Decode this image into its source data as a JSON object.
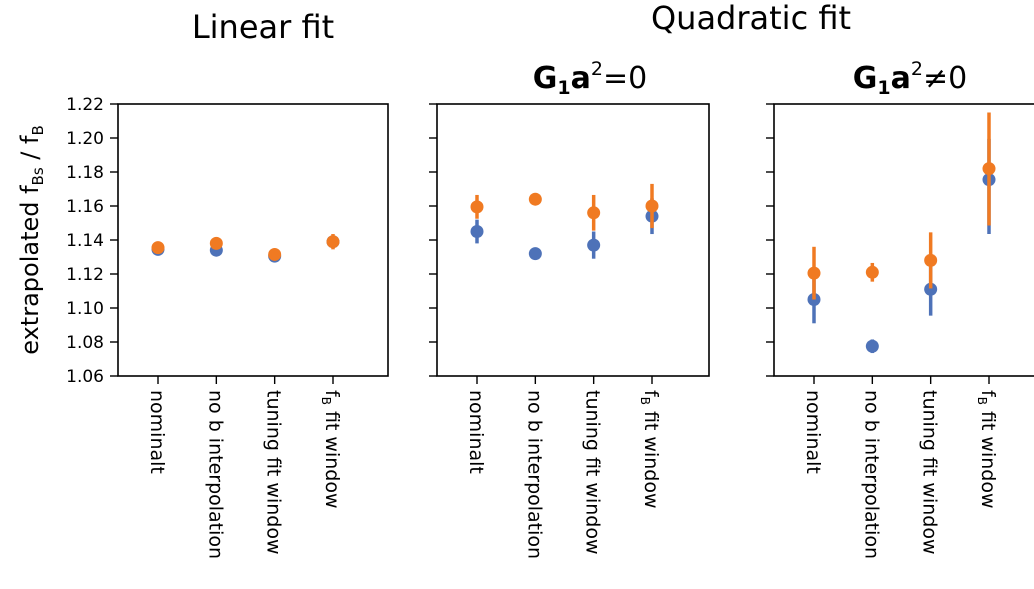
{
  "figure": {
    "group_titles": [
      "Linear fit",
      "Quadratic fit"
    ],
    "ylabel": "extrapolated f",
    "ylabel_sub1": "Bs",
    "ylabel_sep": " / f",
    "ylabel_sub2": "B",
    "colors": {
      "blue": "#4e72b8",
      "orange": "#f07a22"
    }
  },
  "chart_data": [
    {
      "type": "scatter",
      "title": "",
      "group": "Linear fit",
      "categories": [
        "nominalt",
        "no b interpolation",
        "tuning fit window",
        "f_B fit window"
      ],
      "ylim": [
        1.06,
        1.22
      ],
      "yticks": [
        "1.06",
        "1.08",
        "1.10",
        "1.12",
        "1.14",
        "1.16",
        "1.18",
        "1.20",
        "1.22"
      ],
      "series": [
        {
          "color": "#4e72b8",
          "values": [
            1.1345,
            1.134,
            1.1305,
            1.139
          ],
          "lo": [
            1.133,
            1.132,
            1.1285,
            1.1365
          ],
          "hi": [
            1.136,
            1.136,
            1.1325,
            1.1415
          ]
        },
        {
          "color": "#f07a22",
          "values": [
            1.1355,
            1.138,
            1.1315,
            1.139
          ],
          "lo": [
            1.1335,
            1.1355,
            1.1295,
            1.1345
          ],
          "hi": [
            1.1375,
            1.1405,
            1.1335,
            1.1435
          ]
        }
      ]
    },
    {
      "type": "scatter",
      "title": "G₁a²=0",
      "group": "Quadratic fit",
      "categories": [
        "nominalt",
        "no b interpolation",
        "tuning fit window",
        "f_B fit window"
      ],
      "ylim": [
        1.06,
        1.22
      ],
      "series": [
        {
          "color": "#4e72b8",
          "values": [
            1.145,
            1.132,
            1.137,
            1.154
          ],
          "lo": [
            1.138,
            1.131,
            1.129,
            1.1435
          ],
          "hi": [
            1.152,
            1.1335,
            1.145,
            1.1645
          ]
        },
        {
          "color": "#f07a22",
          "values": [
            1.1595,
            1.164,
            1.156,
            1.16
          ],
          "lo": [
            1.1525,
            1.163,
            1.1455,
            1.147
          ],
          "hi": [
            1.1665,
            1.165,
            1.1665,
            1.173
          ]
        }
      ]
    },
    {
      "type": "scatter",
      "title": "G₁a²≠0",
      "group": "Quadratic fit",
      "categories": [
        "nominalt",
        "no b interpolation",
        "tuning fit window",
        "f_B fit window"
      ],
      "ylim": [
        1.06,
        1.22
      ],
      "series": [
        {
          "color": "#4e72b8",
          "values": [
            1.105,
            1.0775,
            1.111,
            1.1755
          ],
          "lo": [
            1.091,
            1.0735,
            1.0955,
            1.1435
          ],
          "hi": [
            1.119,
            1.0815,
            1.1265,
            1.1995
          ]
        },
        {
          "color": "#f07a22",
          "values": [
            1.1205,
            1.121,
            1.128,
            1.182
          ],
          "lo": [
            1.105,
            1.1155,
            1.1115,
            1.1485
          ],
          "hi": [
            1.136,
            1.1265,
            1.1445,
            1.215
          ]
        }
      ]
    }
  ]
}
